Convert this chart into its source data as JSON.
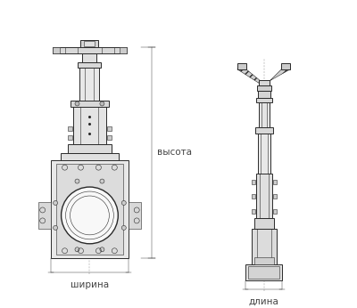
{
  "bg_color": "#ffffff",
  "line_color": "#2a2a2a",
  "dim_color": "#444444",
  "label_vysota": "высота",
  "label_shirina": "ширина",
  "label_dlina": "длина",
  "fig_width": 4.0,
  "fig_height": 3.46,
  "dpi": 100
}
